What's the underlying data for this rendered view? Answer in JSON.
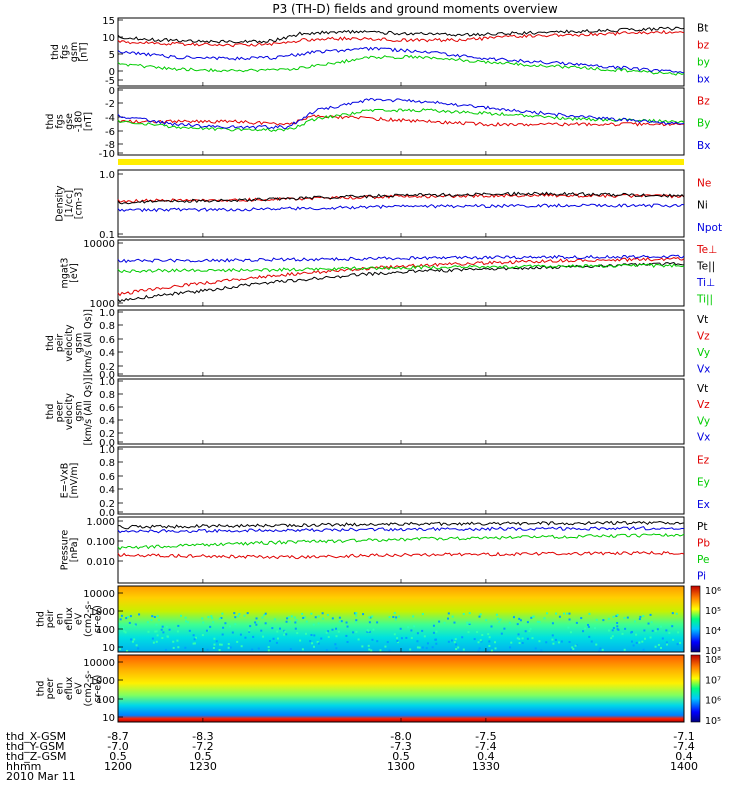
{
  "title": "P3 (TH-D) fields and ground moments overview",
  "date_label": "2010 Mar 11",
  "colors": {
    "black": "#000000",
    "red": "#e00000",
    "green": "#00cc00",
    "blue": "#0000e0",
    "yellow": "#ffee00"
  },
  "panels": [
    {
      "id": "fgs-mag",
      "ylabel": [
        "thd",
        "fgs",
        "gsm",
        "[nT]"
      ],
      "ticks": [
        "15",
        "10",
        "5",
        "0",
        "-5"
      ],
      "legend": [
        {
          "text": "Bt",
          "color": "black"
        },
        {
          "text": "bz",
          "color": "red"
        },
        {
          "text": "by",
          "color": "green"
        },
        {
          "text": "bx",
          "color": "blue"
        }
      ]
    },
    {
      "id": "fgs-angles",
      "ylabel": [
        "thd",
        "fgs",
        "gse",
        "-180",
        "[nT]"
      ],
      "ticks": [
        "0",
        "-2",
        "-4",
        "-6",
        "-8",
        "-10"
      ],
      "legend": [
        {
          "text": "Bz",
          "color": "red"
        },
        {
          "text": "By",
          "color": "green"
        },
        {
          "text": "Bx",
          "color": "blue"
        }
      ]
    },
    {
      "id": "density",
      "ylabel": [
        "Density",
        "[1/cc]",
        "[cm-3]"
      ],
      "ticks": [
        "1.0",
        "0.1"
      ],
      "legend": [
        {
          "text": "Ne",
          "color": "red"
        },
        {
          "text": "Ni",
          "color": "black"
        },
        {
          "text": "Npot",
          "color": "blue"
        }
      ]
    },
    {
      "id": "temperature",
      "ylabel": [
        "mgat3",
        "[eV]"
      ],
      "ticks": [
        "10000",
        "1000"
      ],
      "legend": [
        {
          "text": "Te⊥",
          "color": "red"
        },
        {
          "text": "Te||",
          "color": "black"
        },
        {
          "text": "Ti⊥",
          "color": "blue"
        },
        {
          "text": "Ti||",
          "color": "green"
        }
      ]
    },
    {
      "id": "peir-velocity",
      "ylabel": [
        "thd",
        "peir",
        "velocity",
        "gsm",
        "[km/s (All Qs)]"
      ],
      "ticks": [
        "1.0",
        "0.8",
        "0.6",
        "0.4",
        "0.2",
        "0.0"
      ],
      "legend": [
        {
          "text": "Vt",
          "color": "black"
        },
        {
          "text": "Vz",
          "color": "red"
        },
        {
          "text": "Vy",
          "color": "green"
        },
        {
          "text": "Vx",
          "color": "blue"
        }
      ]
    },
    {
      "id": "peer-velocity",
      "ylabel": [
        "thd",
        "peer",
        "velocity",
        "gsm",
        "[km/s (All Qs)]"
      ],
      "ticks": [
        "1.0",
        "0.8",
        "0.6",
        "0.4",
        "0.2",
        "0.0"
      ],
      "legend": [
        {
          "text": "Vt",
          "color": "black"
        },
        {
          "text": "Vz",
          "color": "red"
        },
        {
          "text": "Vy",
          "color": "green"
        },
        {
          "text": "Vx",
          "color": "blue"
        }
      ]
    },
    {
      "id": "e-vxb",
      "ylabel": [
        "E=-VxB",
        "[mV/m]"
      ],
      "ticks": [
        "1.0",
        "0.8",
        "0.6",
        "0.4",
        "0.2",
        "0.0"
      ],
      "legend": [
        {
          "text": "Ez",
          "color": "red"
        },
        {
          "text": "Ey",
          "color": "green"
        },
        {
          "text": "Ex",
          "color": "blue"
        }
      ]
    },
    {
      "id": "pressure",
      "ylabel": [
        "Pressure",
        "[nPa]"
      ],
      "ticks": [
        "1.000",
        "0.100",
        "0.010"
      ],
      "legend": [
        {
          "text": "Pt",
          "color": "black"
        },
        {
          "text": "Pb",
          "color": "red"
        },
        {
          "text": "Pe",
          "color": "green"
        },
        {
          "text": "Pi",
          "color": "blue"
        }
      ]
    },
    {
      "id": "peir-spec",
      "ylabel": [
        "thd",
        "peir",
        "en",
        "eflux",
        "eV",
        "(cm2-s-",
        "sr-eV)"
      ],
      "ticks": [
        "10000",
        "1000",
        "100",
        "10"
      ],
      "cbar_ticks": [
        "10⁶",
        "10⁵",
        "10⁴",
        "10³"
      ]
    },
    {
      "id": "peer-spec",
      "ylabel": [
        "thd",
        "peer",
        "en",
        "eflux",
        "eV",
        "(cm2-s-",
        "sr-eV)"
      ],
      "ticks": [
        "10000",
        "1000",
        "100",
        "10"
      ],
      "cbar_ticks": [
        "10⁸",
        "10⁷",
        "10⁶",
        "10⁵"
      ]
    }
  ],
  "footer": {
    "row_labels": [
      "thd_X-GSM",
      "thd_Y-GSM",
      "thd_Z-GSM",
      "hhmm"
    ],
    "columns": [
      {
        "x": "-8.7",
        "y": "-7.0",
        "z": "0.5",
        "t": "1200"
      },
      {
        "x": "-8.3",
        "y": "-7.2",
        "z": "0.5",
        "t": "1230"
      },
      {
        "x": "-8.0",
        "y": "-7.3",
        "z": "0.5",
        "t": "1300"
      },
      {
        "x": "-7.5",
        "y": "-7.4",
        "z": "0.4",
        "t": "1330"
      },
      {
        "x": "-7.1",
        "y": "-7.4",
        "z": "0.4",
        "t": "1400"
      }
    ]
  },
  "chart_data": {
    "type": "line",
    "title": "P3 (TH-D) fields and ground moments overview",
    "x_ticks": [
      "1200",
      "1230",
      "1300",
      "1330",
      "1400"
    ],
    "x_domain": [
      1200,
      1400
    ],
    "series_panels": [
      {
        "panel": "fgs-mag",
        "ylim": [
          -5,
          15
        ],
        "scale": "linear",
        "series": [
          {
            "name": "Bt",
            "color": "black",
            "points": [
              [
                1200,
                9.5
              ],
              [
                1215,
                8.5
              ],
              [
                1240,
                8
              ],
              [
                1255,
                8.3
              ],
              [
                1265,
                10.5
              ],
              [
                1280,
                11
              ],
              [
                1300,
                10.5
              ],
              [
                1320,
                10
              ],
              [
                1340,
                10.5
              ],
              [
                1360,
                11
              ],
              [
                1380,
                11.5
              ],
              [
                1400,
                12
              ]
            ]
          },
          {
            "name": "bz",
            "color": "red",
            "points": [
              [
                1200,
                8
              ],
              [
                1215,
                7.5
              ],
              [
                1240,
                7
              ],
              [
                1255,
                7.3
              ],
              [
                1265,
                8.5
              ],
              [
                1280,
                9
              ],
              [
                1300,
                8.5
              ],
              [
                1320,
                8.5
              ],
              [
                1340,
                9.5
              ],
              [
                1360,
                10
              ],
              [
                1380,
                10.5
              ],
              [
                1400,
                11
              ]
            ]
          },
          {
            "name": "by",
            "color": "green",
            "points": [
              [
                1200,
                1.5
              ],
              [
                1220,
                0
              ],
              [
                1240,
                -0.5
              ],
              [
                1260,
                0
              ],
              [
                1270,
                1
              ],
              [
                1290,
                3.5
              ],
              [
                1310,
                3.5
              ],
              [
                1330,
                2
              ],
              [
                1360,
                0.5
              ],
              [
                1400,
                -1.5
              ]
            ]
          },
          {
            "name": "bx",
            "color": "blue",
            "points": [
              [
                1200,
                5
              ],
              [
                1220,
                3.5
              ],
              [
                1240,
                3
              ],
              [
                1255,
                3.3
              ],
              [
                1270,
                5
              ],
              [
                1290,
                6
              ],
              [
                1310,
                5
              ],
              [
                1330,
                3
              ],
              [
                1360,
                1.5
              ],
              [
                1400,
                -1
              ]
            ]
          }
        ]
      },
      {
        "panel": "fgs-angles",
        "ylim": [
          -11,
          1
        ],
        "scale": "linear",
        "series": [
          {
            "name": "Bz",
            "color": "red",
            "points": [
              [
                1200,
                -5
              ],
              [
                1220,
                -5
              ],
              [
                1240,
                -5
              ],
              [
                1260,
                -5.5
              ],
              [
                1270,
                -4
              ],
              [
                1290,
                -4.5
              ],
              [
                1310,
                -5
              ],
              [
                1330,
                -5.5
              ],
              [
                1360,
                -5.5
              ],
              [
                1400,
                -5.5
              ]
            ]
          },
          {
            "name": "By",
            "color": "green",
            "points": [
              [
                1200,
                -5
              ],
              [
                1220,
                -6
              ],
              [
                1240,
                -6.5
              ],
              [
                1260,
                -6.5
              ],
              [
                1270,
                -4.5
              ],
              [
                1290,
                -3
              ],
              [
                1310,
                -3
              ],
              [
                1330,
                -3.5
              ],
              [
                1360,
                -4.5
              ],
              [
                1400,
                -5
              ]
            ]
          },
          {
            "name": "Bx",
            "color": "blue",
            "points": [
              [
                1200,
                -4
              ],
              [
                1220,
                -5.5
              ],
              [
                1240,
                -6
              ],
              [
                1260,
                -6
              ],
              [
                1270,
                -3
              ],
              [
                1290,
                -1
              ],
              [
                1310,
                -1.5
              ],
              [
                1330,
                -2.5
              ],
              [
                1360,
                -4
              ],
              [
                1400,
                -5.5
              ]
            ]
          }
        ]
      },
      {
        "panel": "density",
        "ylim": [
          0.1,
          1.2
        ],
        "scale": "log",
        "series": [
          {
            "name": "Ne",
            "color": "red",
            "points": [
              [
                1200,
                0.38
              ],
              [
                1250,
                0.4
              ],
              [
                1300,
                0.45
              ],
              [
                1350,
                0.47
              ],
              [
                1400,
                0.45
              ]
            ]
          },
          {
            "name": "Ni",
            "color": "black",
            "points": [
              [
                1200,
                0.36
              ],
              [
                1250,
                0.4
              ],
              [
                1300,
                0.47
              ],
              [
                1350,
                0.5
              ],
              [
                1400,
                0.46
              ]
            ]
          },
          {
            "name": "Npot",
            "color": "blue",
            "points": [
              [
                1200,
                0.27
              ],
              [
                1250,
                0.28
              ],
              [
                1300,
                0.31
              ],
              [
                1350,
                0.32
              ],
              [
                1400,
                0.32
              ]
            ]
          }
        ]
      },
      {
        "panel": "temperature",
        "ylim": [
          1000,
          10000
        ],
        "scale": "log",
        "series": [
          {
            "name": "Te⊥",
            "color": "red",
            "points": [
              [
                1200,
                1500
              ],
              [
                1230,
                2200
              ],
              [
                1260,
                3000
              ],
              [
                1300,
                4000
              ],
              [
                1350,
                4800
              ],
              [
                1400,
                5200
              ]
            ]
          },
          {
            "name": "Te||",
            "color": "black",
            "points": [
              [
                1200,
                1200
              ],
              [
                1230,
                1700
              ],
              [
                1260,
                2400
              ],
              [
                1300,
                3300
              ],
              [
                1350,
                3800
              ],
              [
                1400,
                4400
              ]
            ]
          },
          {
            "name": "Ti⊥",
            "color": "blue",
            "points": [
              [
                1200,
                4800
              ],
              [
                1250,
                5000
              ],
              [
                1300,
                5300
              ],
              [
                1350,
                5500
              ],
              [
                1400,
                5600
              ]
            ]
          },
          {
            "name": "Ti||",
            "color": "green",
            "points": [
              [
                1200,
                3400
              ],
              [
                1250,
                3500
              ],
              [
                1300,
                3800
              ],
              [
                1350,
                4000
              ],
              [
                1400,
                4100
              ]
            ]
          }
        ]
      },
      {
        "panel": "pressure",
        "ylim": [
          0.004,
          1.5
        ],
        "scale": "log",
        "series": [
          {
            "name": "Pt",
            "color": "black",
            "points": [
              [
                1200,
                0.6
              ],
              [
                1300,
                0.8
              ],
              [
                1400,
                0.9
              ]
            ]
          },
          {
            "name": "Pb",
            "color": "red",
            "points": [
              [
                1200,
                0.05
              ],
              [
                1260,
                0.04
              ],
              [
                1300,
                0.05
              ],
              [
                1400,
                0.06
              ]
            ]
          },
          {
            "name": "Pe",
            "color": "green",
            "points": [
              [
                1200,
                0.09
              ],
              [
                1300,
                0.2
              ],
              [
                1400,
                0.3
              ]
            ]
          },
          {
            "name": "Pi",
            "color": "blue",
            "points": [
              [
                1200,
                0.4
              ],
              [
                1300,
                0.5
              ],
              [
                1400,
                0.55
              ]
            ]
          }
        ]
      }
    ]
  }
}
